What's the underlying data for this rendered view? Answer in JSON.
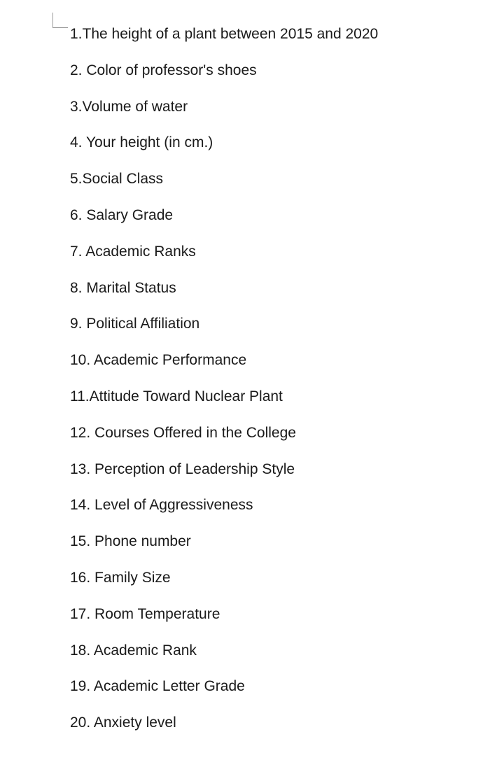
{
  "text_color": "#1a1a1a",
  "background_color": "#ffffff",
  "font_size": 21,
  "line_spacing": 24.5,
  "items": [
    {
      "num": "1",
      "sep": ".",
      "text": "The height of a plant between 2015 and 2020"
    },
    {
      "num": "2",
      "sep": ". ",
      "text": "Color of professor's shoes"
    },
    {
      "num": "3",
      "sep": ".",
      "text": "Volume of water"
    },
    {
      "num": "4",
      "sep": ". ",
      "text": "Your height (in cm.)"
    },
    {
      "num": "5",
      "sep": ".",
      "text": "Social Class"
    },
    {
      "num": "6",
      "sep": ". ",
      "text": "Salary Grade"
    },
    {
      "num": "7",
      "sep": ". ",
      "text": "Academic Ranks"
    },
    {
      "num": "8",
      "sep": ". ",
      "text": "Marital Status"
    },
    {
      "num": "9",
      "sep": ". ",
      "text": "Political Affiliation"
    },
    {
      "num": "10",
      "sep": ". ",
      "text": "Academic Performance"
    },
    {
      "num": "11",
      "sep": ".",
      "text": "Attitude Toward Nuclear Plant"
    },
    {
      "num": "12",
      "sep": ". ",
      "text": "Courses Offered in the College"
    },
    {
      "num": "13",
      "sep": ". ",
      "text": "Perception of Leadership Style"
    },
    {
      "num": "14",
      "sep": ". ",
      "text": "Level of Aggressiveness"
    },
    {
      "num": "15",
      "sep": ". ",
      "text": "Phone number"
    },
    {
      "num": "16",
      "sep": ". ",
      "text": "Family Size"
    },
    {
      "num": "17",
      "sep": ". ",
      "text": "Room Temperature"
    },
    {
      "num": "18",
      "sep": ". ",
      "text": "Academic Rank"
    },
    {
      "num": "19",
      "sep": ". ",
      "text": "Academic Letter Grade"
    },
    {
      "num": "20",
      "sep": ". ",
      "text": "Anxiety level"
    }
  ]
}
